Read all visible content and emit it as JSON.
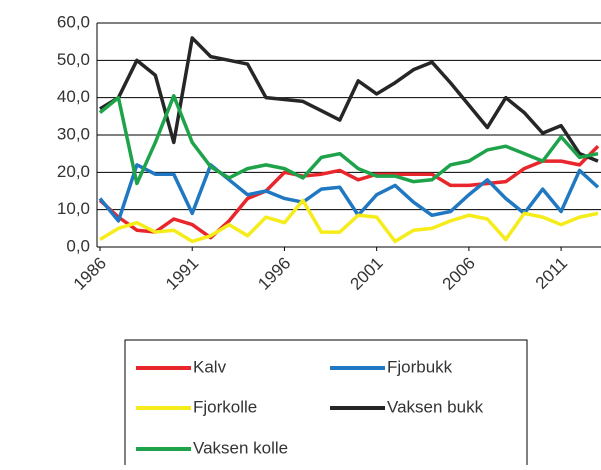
{
  "chart_data": {
    "type": "line",
    "x": [
      1986,
      1987,
      1988,
      1989,
      1990,
      1991,
      1992,
      1993,
      1994,
      1995,
      1996,
      1997,
      1998,
      1999,
      2000,
      2001,
      2002,
      2003,
      2004,
      2005,
      2006,
      2007,
      2008,
      2009,
      2010,
      2011,
      2012,
      2013
    ],
    "xlim": [
      1986,
      2013
    ],
    "xticks": [
      1986,
      1991,
      1996,
      2001,
      2006,
      2011
    ],
    "ylim": [
      0,
      60
    ],
    "yticks": [
      {
        "value": 0,
        "label": "0,0"
      },
      {
        "value": 10,
        "label": "10,0"
      },
      {
        "value": 20,
        "label": "20,0"
      },
      {
        "value": 30,
        "label": "30,0"
      },
      {
        "value": 40,
        "label": "40,0"
      },
      {
        "value": 50,
        "label": "50,0"
      },
      {
        "value": 60,
        "label": "60,0"
      }
    ],
    "grid": true,
    "series": [
      {
        "name": "Kalv",
        "color": "#e8262b",
        "values": [
          12.5,
          8,
          4.5,
          4,
          7.5,
          6,
          2.5,
          7,
          13,
          15,
          20,
          19,
          19.5,
          20.5,
          18,
          19.5,
          19.5,
          19.5,
          19.5,
          16.5,
          16.5,
          17,
          17.5,
          21,
          23,
          23,
          22,
          27
        ]
      },
      {
        "name": "Fjorbukk",
        "color": "#1f78c1",
        "values": [
          13,
          7,
          22,
          19.5,
          19.5,
          9,
          22,
          18,
          14,
          15,
          13,
          12,
          15.5,
          16,
          8.5,
          14,
          16.5,
          12,
          8.5,
          9.5,
          14,
          18,
          13,
          9,
          15.5,
          9.5,
          20.5,
          16
        ]
      },
      {
        "name": "Fjorkolle",
        "color": "#f5ec1a",
        "values": [
          2,
          5,
          6.5,
          4,
          4.5,
          1.5,
          3,
          6,
          3,
          8,
          6.5,
          12.5,
          4,
          4,
          8.5,
          8,
          1.5,
          4.5,
          5,
          7,
          8.5,
          7.5,
          2,
          9,
          8,
          6,
          8,
          9
        ]
      },
      {
        "name": "Vaksen bukk",
        "color": "#262626",
        "values": [
          37,
          40,
          50,
          46,
          28,
          56,
          51,
          50,
          49,
          40,
          39.5,
          39,
          36.5,
          34,
          44.5,
          41,
          44,
          47.5,
          49.5,
          44,
          38,
          32,
          40,
          36,
          30.5,
          32.5,
          25,
          23
        ]
      },
      {
        "name": "Vaksen kolle",
        "color": "#1ea34a",
        "values": [
          36,
          40,
          17,
          28,
          40.5,
          28,
          21.5,
          18.5,
          21,
          22,
          21,
          18.5,
          24,
          25,
          21,
          19,
          19,
          17.5,
          18,
          22,
          23,
          26,
          27,
          25,
          23,
          29.5,
          24,
          25
        ]
      }
    ]
  }
}
